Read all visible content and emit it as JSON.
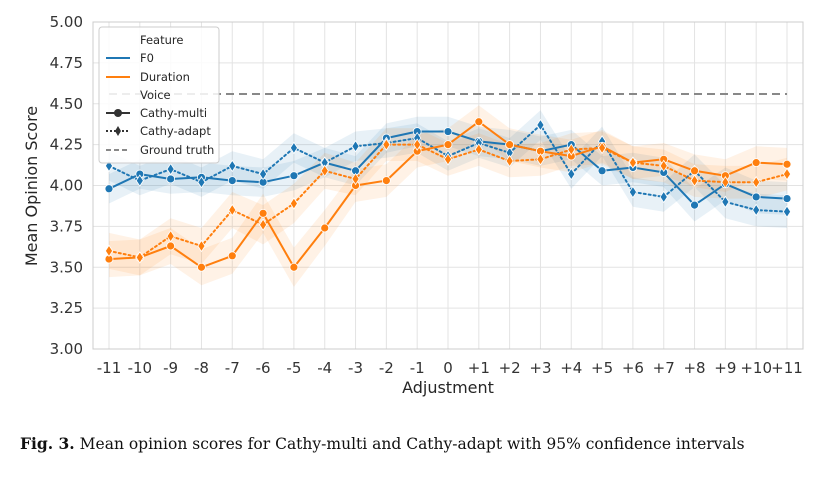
{
  "chart_data": {
    "type": "line",
    "xlabel": "Adjustment",
    "ylabel": "Mean Opinion Score",
    "ylim": [
      3.0,
      5.0
    ],
    "yticks": [
      "3.00",
      "3.25",
      "3.50",
      "3.75",
      "4.00",
      "4.25",
      "4.50",
      "4.75",
      "5.00"
    ],
    "categories": [
      "-11",
      "-10",
      "-9",
      "-8",
      "-7",
      "-6",
      "-5",
      "-4",
      "-3",
      "-2",
      "-1",
      "0",
      "+1",
      "+2",
      "+3",
      "+4",
      "+5",
      "+6",
      "+7",
      "+8",
      "+9",
      "+10",
      "+11"
    ],
    "grid": true,
    "legend_position": "top-left",
    "legend": {
      "feature_title": "Feature",
      "voice_title": "Voice",
      "f0_label": "F0",
      "duration_label": "Duration",
      "multi_label": "Cathy-multi",
      "adapt_label": "Cathy-adapt",
      "ground_label": "Ground truth"
    },
    "ground_truth": 4.56,
    "colors": {
      "f0": "#1f77b4",
      "duration": "#ff7f0e",
      "ground": "#888888"
    },
    "series": [
      {
        "feature": "F0",
        "voice": "Cathy-multi",
        "values": [
          3.98,
          4.07,
          4.04,
          4.05,
          4.03,
          4.02,
          4.06,
          4.14,
          4.09,
          4.29,
          4.33,
          4.33,
          4.27,
          4.25,
          4.21,
          4.25,
          4.09,
          4.11,
          4.08,
          3.88,
          4.01,
          3.93,
          3.92
        ],
        "ci": [
          0.09,
          0.09,
          0.09,
          0.09,
          0.09,
          0.09,
          0.09,
          0.09,
          0.09,
          0.09,
          0.09,
          0.09,
          0.09,
          0.09,
          0.09,
          0.09,
          0.09,
          0.09,
          0.09,
          0.1,
          0.1,
          0.1,
          0.1
        ]
      },
      {
        "feature": "F0",
        "voice": "Cathy-adapt",
        "values": [
          4.12,
          4.03,
          4.1,
          4.02,
          4.12,
          4.07,
          4.23,
          4.14,
          4.24,
          4.26,
          4.29,
          4.18,
          4.26,
          4.2,
          4.37,
          4.07,
          4.27,
          3.96,
          3.93,
          4.09,
          3.9,
          3.85,
          3.84
        ],
        "ci": [
          0.09,
          0.09,
          0.09,
          0.09,
          0.09,
          0.09,
          0.09,
          0.09,
          0.09,
          0.09,
          0.09,
          0.09,
          0.09,
          0.09,
          0.09,
          0.09,
          0.09,
          0.09,
          0.09,
          0.1,
          0.1,
          0.1,
          0.1
        ]
      },
      {
        "feature": "Duration",
        "voice": "Cathy-multi",
        "values": [
          3.55,
          3.56,
          3.63,
          3.5,
          3.57,
          3.83,
          3.5,
          3.74,
          4.0,
          4.03,
          4.21,
          4.25,
          4.39,
          4.25,
          4.21,
          4.18,
          4.24,
          4.14,
          4.16,
          4.09,
          4.06,
          4.14,
          4.13
        ],
        "ci": [
          0.11,
          0.11,
          0.11,
          0.11,
          0.11,
          0.12,
          0.12,
          0.11,
          0.1,
          0.1,
          0.1,
          0.1,
          0.1,
          0.1,
          0.1,
          0.1,
          0.1,
          0.1,
          0.1,
          0.1,
          0.1,
          0.1,
          0.1
        ]
      },
      {
        "feature": "Duration",
        "voice": "Cathy-adapt",
        "values": [
          3.6,
          3.56,
          3.69,
          3.63,
          3.85,
          3.76,
          3.89,
          4.09,
          4.04,
          4.25,
          4.25,
          4.16,
          4.22,
          4.15,
          4.16,
          4.22,
          4.23,
          4.14,
          4.12,
          4.03,
          4.02,
          4.02,
          4.07
        ],
        "ci": [
          0.11,
          0.11,
          0.11,
          0.11,
          0.11,
          0.12,
          0.12,
          0.11,
          0.1,
          0.1,
          0.1,
          0.1,
          0.1,
          0.1,
          0.1,
          0.1,
          0.1,
          0.1,
          0.1,
          0.1,
          0.1,
          0.1,
          0.1
        ]
      }
    ]
  },
  "caption": {
    "label": "Fig. 3.",
    "text": "Mean opinion scores for Cathy-multi and Cathy-adapt with 95% confidence intervals"
  }
}
